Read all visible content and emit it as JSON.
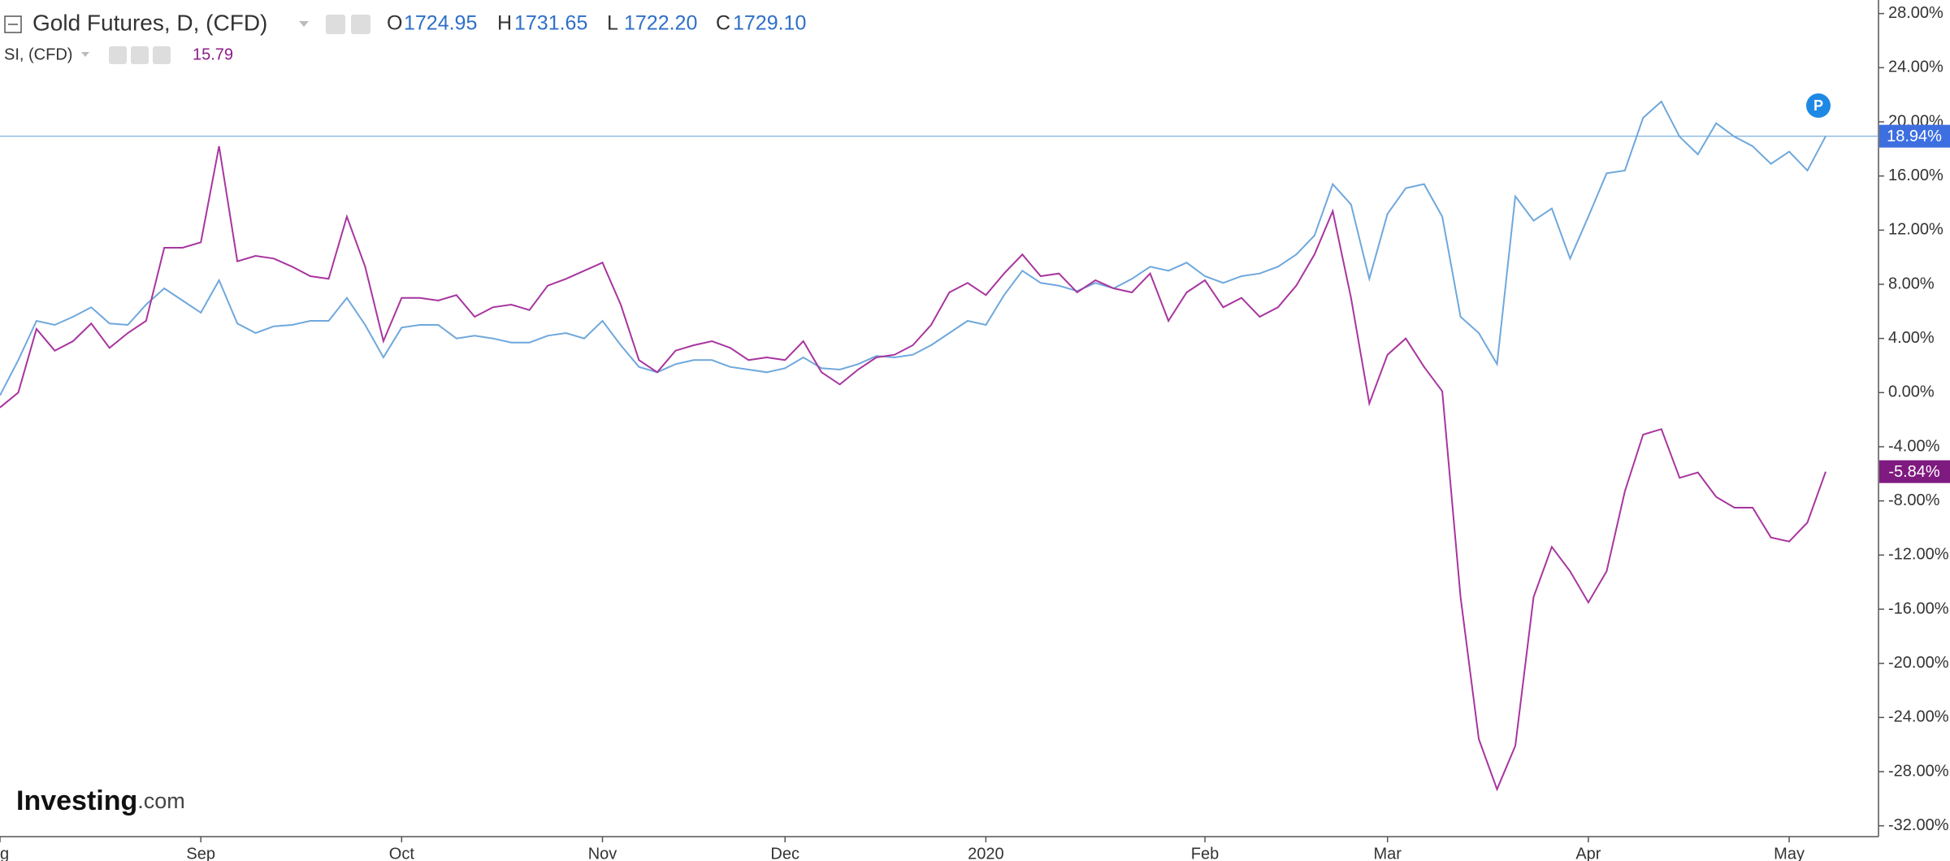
{
  "chart_data": {
    "type": "line",
    "categories": [
      "ug",
      null,
      null,
      null,
      null,
      null,
      null,
      null,
      null,
      null,
      null,
      "Sep",
      null,
      null,
      null,
      null,
      null,
      null,
      null,
      null,
      null,
      null,
      "Oct",
      null,
      null,
      null,
      null,
      null,
      null,
      null,
      null,
      null,
      null,
      "Nov",
      null,
      null,
      null,
      null,
      null,
      null,
      null,
      null,
      null,
      "Dec",
      null,
      null,
      null,
      null,
      null,
      null,
      null,
      null,
      null,
      null,
      "2020",
      null,
      null,
      null,
      null,
      null,
      null,
      null,
      null,
      null,
      null,
      null,
      "Feb",
      null,
      null,
      null,
      null,
      null,
      null,
      null,
      null,
      null,
      "Mar",
      null,
      null,
      null,
      null,
      null,
      null,
      null,
      null,
      null,
      null,
      "Apr",
      null,
      null,
      null,
      null,
      null,
      null,
      null,
      null,
      null,
      null,
      "May",
      null,
      null
    ],
    "series": [
      {
        "name": "Gold Futures, D, (CFD)",
        "color": "#6fa8dc",
        "label_color": "#2f6fc8",
        "badge_color": "#3d6fe0",
        "ohlc": [
          {
            "label": "O",
            "value": "1724.95"
          },
          {
            "label": "H",
            "value": "1731.65"
          },
          {
            "label": "L",
            "value": "1722.20"
          },
          {
            "label": "C",
            "value": "1729.10"
          }
        ],
        "last_value_label": "18.94%",
        "price_line": true,
        "values": [
          -0.2,
          2.4,
          5.3,
          5.0,
          5.6,
          6.3,
          5.1,
          5.0,
          6.5,
          7.7,
          6.8,
          5.9,
          8.3,
          5.1,
          4.4,
          4.9,
          5.0,
          5.3,
          5.3,
          7.0,
          5.0,
          2.6,
          4.8,
          5.0,
          5.0,
          4.0,
          4.2,
          4.0,
          3.7,
          3.7,
          4.2,
          4.4,
          4.0,
          5.3,
          3.5,
          1.9,
          1.5,
          2.1,
          2.4,
          2.4,
          1.9,
          1.7,
          1.5,
          1.8,
          2.6,
          1.8,
          1.7,
          2.1,
          2.7,
          2.6,
          2.8,
          3.5,
          4.4,
          5.3,
          5.0,
          7.2,
          9.0,
          8.1,
          7.9,
          7.5,
          8.1,
          7.7,
          8.4,
          9.3,
          9.0,
          9.6,
          8.6,
          8.1,
          8.6,
          8.8,
          9.3,
          10.2,
          11.6,
          15.4,
          13.9,
          8.4,
          13.2,
          15.1,
          15.4,
          13.0,
          5.6,
          4.4,
          2.1,
          14.5,
          12.7,
          13.6,
          9.9,
          13.0,
          16.2,
          16.4,
          20.3,
          21.5,
          18.9,
          17.6,
          19.9,
          18.9,
          18.2,
          16.9,
          17.8,
          16.4,
          18.94
        ]
      },
      {
        "name": "SI, (CFD)",
        "color": "#a8359f",
        "label_color": "#8b1c86",
        "badge_color": "#7f1a80",
        "last_price": "15.79",
        "last_value_label": "-5.84%",
        "price_line": false,
        "values": [
          -1.1,
          0,
          4.7,
          3.1,
          3.8,
          5.1,
          3.3,
          4.4,
          5.3,
          10.7,
          10.7,
          11.1,
          18.2,
          9.7,
          10.1,
          9.9,
          9.3,
          8.6,
          8.4,
          13.0,
          9.3,
          3.8,
          7.0,
          7.0,
          6.8,
          7.2,
          5.6,
          6.3,
          6.5,
          6.1,
          7.9,
          8.4,
          9.0,
          9.6,
          6.5,
          2.4,
          1.5,
          3.1,
          3.5,
          3.8,
          3.3,
          2.4,
          2.6,
          2.4,
          3.8,
          1.5,
          0.6,
          1.7,
          2.6,
          2.8,
          3.5,
          5.0,
          7.4,
          8.1,
          7.2,
          8.8,
          10.2,
          8.6,
          8.8,
          7.4,
          8.3,
          7.7,
          7.4,
          8.8,
          5.3,
          7.4,
          8.3,
          6.3,
          7.0,
          5.6,
          6.3,
          7.9,
          10.2,
          13.4,
          7.0,
          -0.8,
          2.8,
          4.0,
          1.9,
          0.1,
          -15.1,
          -25.6,
          -29.3,
          -26.1,
          -15.1,
          -11.4,
          -13.2,
          -15.5,
          -13.2,
          -7.3,
          -3.1,
          -2.7,
          -6.3,
          -5.9,
          -7.7,
          -8.5,
          -8.5,
          -10.7,
          -11.0,
          -9.6,
          -5.84
        ]
      }
    ],
    "ylim": [
      -32.8,
      29.0
    ],
    "yticks": [
      {
        "value": 28,
        "label": "28.00%"
      },
      {
        "value": 24,
        "label": "24.00%"
      },
      {
        "value": 20,
        "label": "20.00%"
      },
      {
        "value": 16,
        "label": "16.00%"
      },
      {
        "value": 12,
        "label": "12.00%"
      },
      {
        "value": 8,
        "label": "8.00%"
      },
      {
        "value": 4,
        "label": "4.00%"
      },
      {
        "value": 0,
        "label": "0.00%"
      },
      {
        "value": -4,
        "label": "-4.00%"
      },
      {
        "value": -8,
        "label": "-8.00%"
      },
      {
        "value": -12,
        "label": "-12.00%"
      },
      {
        "value": -16,
        "label": "-16.00%"
      },
      {
        "value": -20,
        "label": "-20.00%"
      },
      {
        "value": -24,
        "label": "-24.00%"
      },
      {
        "value": -28,
        "label": "-28.00%"
      },
      {
        "value": -32,
        "label": "-32.00%"
      }
    ],
    "grid": false,
    "badge": "P",
    "logo": {
      "name": "Investing",
      "suffix": ".com"
    }
  }
}
